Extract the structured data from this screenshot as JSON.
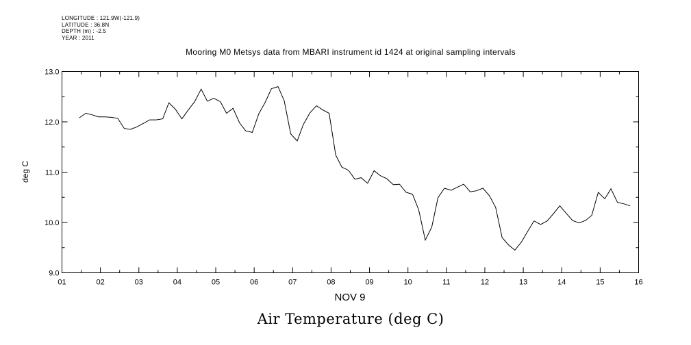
{
  "header": {
    "longitude": "LONGITUDE : 121.9W(-121.9)",
    "latitude": "LATITUDE : 36.8N",
    "depth": "DEPTH (m) : -2.5",
    "year": "YEAR : 2011"
  },
  "chart_data": {
    "type": "line",
    "title": "Mooring M0 Metsys data from MBARI instrument id 1424 at original sampling intervals",
    "bottom_title": "Air Temperature (deg C)",
    "ylabel": "deg C",
    "xlabel": "NOV 9",
    "x_ticks": [
      "01",
      "02",
      "03",
      "04",
      "05",
      "06",
      "07",
      "08",
      "09",
      "10",
      "11",
      "12",
      "13",
      "14",
      "15",
      "16"
    ],
    "y_ticks": [
      "9.0",
      "10.0",
      "11.0",
      "12.0",
      "13.0"
    ],
    "xlim": [
      1,
      16
    ],
    "ylim": [
      9.0,
      13.0
    ],
    "grid": false,
    "series": [
      {
        "x": [
          1.45,
          1.62,
          1.78,
          1.95,
          2.12,
          2.28,
          2.45,
          2.62,
          2.78,
          2.95,
          3.12,
          3.28,
          3.45,
          3.62,
          3.78,
          3.95,
          4.12,
          4.28,
          4.45,
          4.62,
          4.78,
          4.95,
          5.12,
          5.28,
          5.45,
          5.62,
          5.78,
          5.95,
          6.12,
          6.28,
          6.45,
          6.62,
          6.78,
          6.95,
          7.12,
          7.28,
          7.45,
          7.62,
          7.78,
          7.95,
          8.12,
          8.28,
          8.45,
          8.62,
          8.78,
          8.95,
          9.12,
          9.28,
          9.45,
          9.62,
          9.78,
          9.95,
          10.12,
          10.28,
          10.45,
          10.62,
          10.78,
          10.95,
          11.12,
          11.28,
          11.45,
          11.62,
          11.78,
          11.95,
          12.12,
          12.28,
          12.45,
          12.62,
          12.78,
          12.95,
          13.12,
          13.28,
          13.45,
          13.62,
          13.78,
          13.95,
          14.12,
          14.28,
          14.45,
          14.62,
          14.78,
          14.95,
          15.12,
          15.28,
          15.45,
          15.62,
          15.78
        ],
        "y": [
          12.08,
          12.17,
          12.14,
          12.1,
          12.1,
          12.09,
          12.07,
          11.87,
          11.85,
          11.9,
          11.97,
          12.04,
          12.04,
          12.06,
          12.38,
          12.25,
          12.06,
          12.23,
          12.4,
          12.65,
          12.41,
          12.47,
          12.4,
          12.17,
          12.27,
          11.98,
          11.82,
          11.79,
          12.16,
          12.38,
          12.66,
          12.7,
          12.42,
          11.76,
          11.62,
          11.95,
          12.18,
          12.32,
          12.24,
          12.17,
          11.34,
          11.1,
          11.04,
          10.86,
          10.89,
          10.78,
          11.03,
          10.93,
          10.87,
          10.75,
          10.76,
          10.6,
          10.56,
          10.25,
          9.65,
          9.91,
          10.49,
          10.68,
          10.64,
          10.7,
          10.76,
          10.61,
          10.63,
          10.68,
          10.53,
          10.3,
          9.7,
          9.55,
          9.45,
          9.61,
          9.83,
          10.03,
          9.96,
          10.03,
          10.17,
          10.33,
          10.18,
          10.04,
          9.99,
          10.04,
          10.14,
          10.6,
          10.47,
          10.67,
          10.4,
          10.37,
          10.33
        ]
      }
    ]
  }
}
